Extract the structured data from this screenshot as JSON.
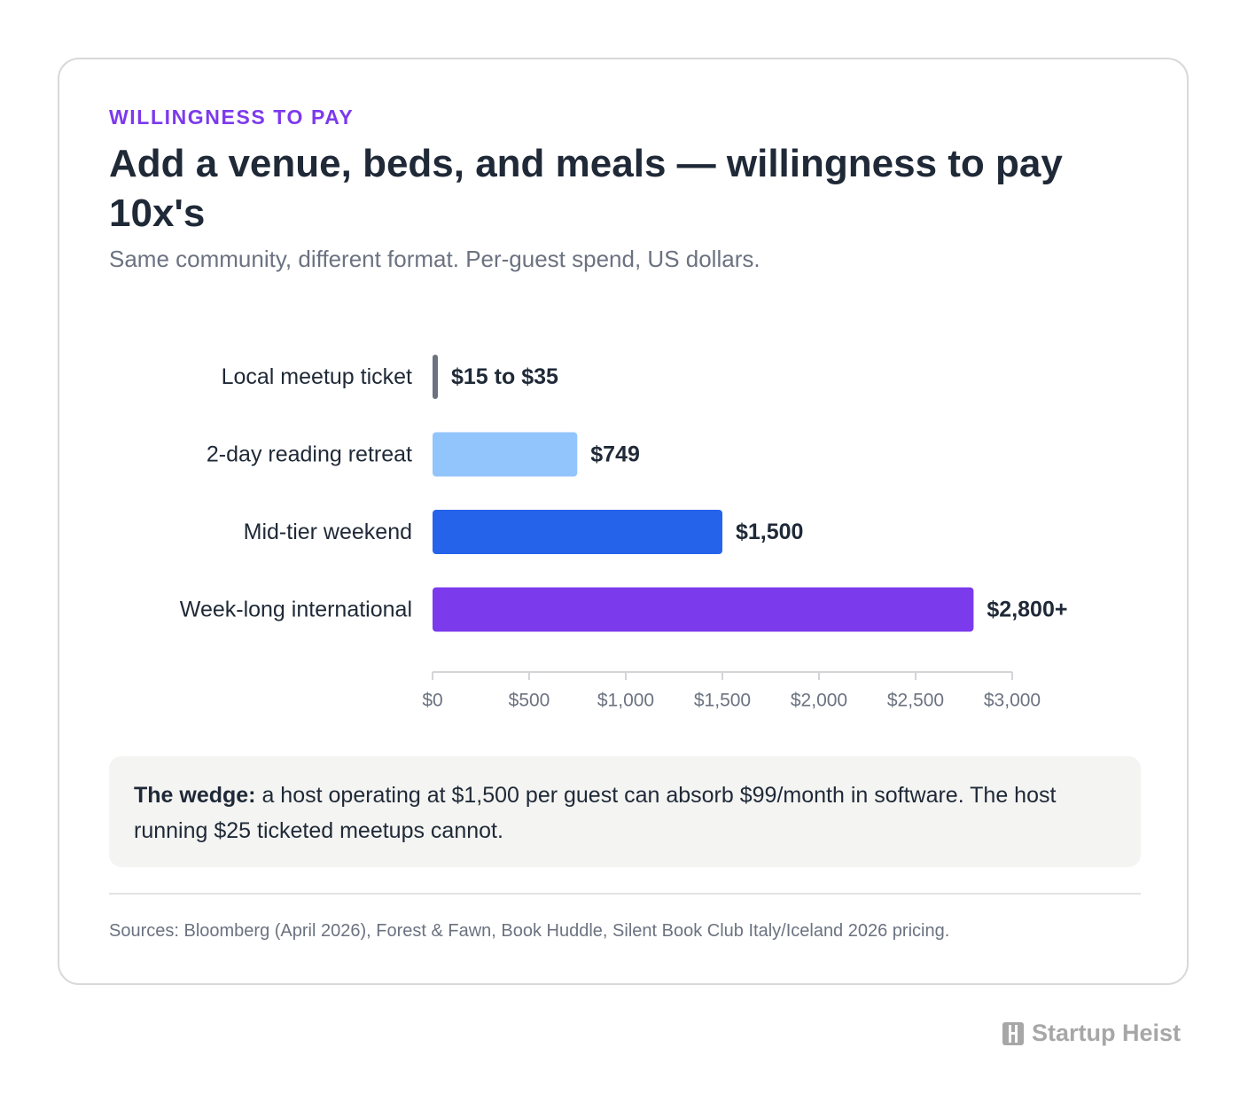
{
  "header": {
    "eyebrow": "WILLINGNESS TO PAY",
    "title": "Add a venue, beds, and meals — willingness to pay 10x's",
    "subtitle": "Same community, different format. Per-guest spend, US dollars."
  },
  "chart_data": {
    "type": "bar",
    "orientation": "horizontal",
    "categories": [
      "Local meetup ticket",
      "2-day reading retreat",
      "Mid-tier weekend",
      "Week-long international"
    ],
    "values": [
      25,
      749,
      1500,
      2800
    ],
    "value_labels": [
      "$15 to $35",
      "$749",
      "$1,500",
      "$2,800+"
    ],
    "colors": [
      "#6b7280",
      "#93c5fd",
      "#2563eb",
      "#7c3aed"
    ],
    "xlim": [
      0,
      3000
    ],
    "xticks": [
      0,
      500,
      1000,
      1500,
      2000,
      2500,
      3000
    ],
    "xtick_labels": [
      "$0",
      "$500",
      "$1,000",
      "$1,500",
      "$2,000",
      "$2,500",
      "$3,000"
    ],
    "grid": false
  },
  "callout": {
    "lead": "The wedge:",
    "text": " a host operating at $1,500 per guest can absorb $99/month in software. The host running $25 ticketed meetups cannot."
  },
  "footer": {
    "sources": "Sources: Bloomberg (April 2026), Forest & Fawn, Book Huddle, Silent Book Club Italy/Iceland 2026 pricing."
  },
  "brand": {
    "name": "Startup Heist",
    "icon": "building-logo-icon"
  }
}
